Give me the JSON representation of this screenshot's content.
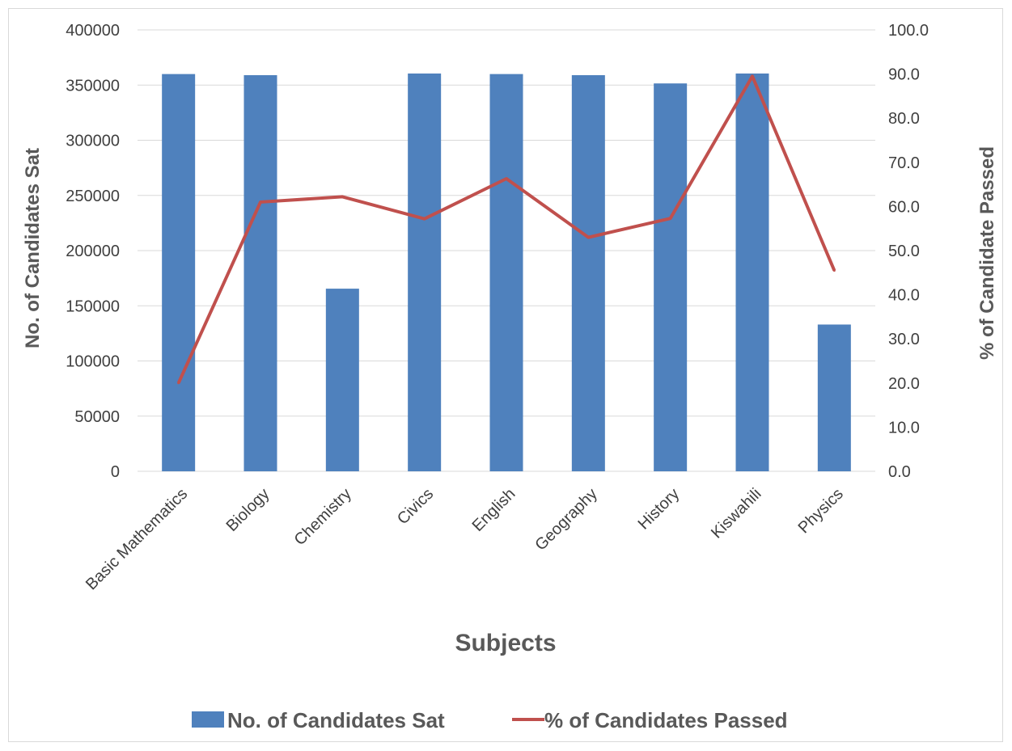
{
  "chart_data": {
    "type": "bar",
    "categories": [
      "Basic Mathematics",
      "Biology",
      "Chemistry",
      "Civics",
      "English",
      "Geography",
      "History",
      "Kiswahili",
      "Physics"
    ],
    "series": [
      {
        "name": "No. of Candidates Sat",
        "type": "bar",
        "axis": "left",
        "color": "#4f81bd",
        "values": [
          360000,
          359000,
          165500,
          360500,
          360000,
          359000,
          351500,
          360500,
          133000
        ]
      },
      {
        "name": "% of Candidates Passed",
        "type": "line",
        "axis": "right",
        "color": "#c0504d",
        "values": [
          20.0,
          61.0,
          62.2,
          57.2,
          66.3,
          53.0,
          57.3,
          89.5,
          45.5
        ]
      }
    ],
    "xlabel": "Subjects",
    "ylabel": "No. of Candidates Sat",
    "y2label": "% of Candidate Passed",
    "ylim": [
      0,
      400000
    ],
    "y2lim": [
      0,
      100
    ],
    "yticks": [
      "0",
      "50000",
      "100000",
      "150000",
      "200000",
      "250000",
      "300000",
      "350000",
      "400000"
    ],
    "y2ticks": [
      "0.0",
      "10.0",
      "20.0",
      "30.0",
      "40.0",
      "50.0",
      "60.0",
      "70.0",
      "80.0",
      "90.0",
      "100.0"
    ],
    "grid": true,
    "legend_position": "bottom",
    "grid_color": "#d9d9d9"
  }
}
